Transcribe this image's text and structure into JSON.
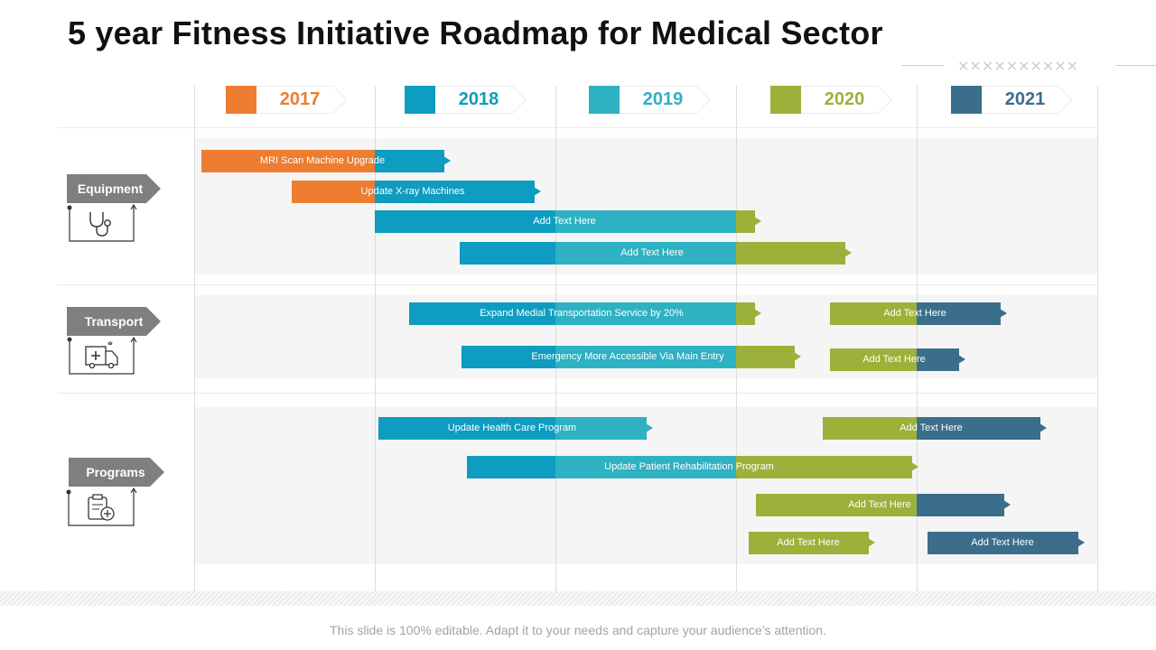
{
  "title": "5 year Fitness Initiative Roadmap for Medical Sector",
  "decoration": "××××××××××",
  "colors": {
    "2017": "#ED7D31",
    "2018": "#0E9CC0",
    "2019": "#2EB1C2",
    "2020": "#9CB13A",
    "2021": "#3B6E8A"
  },
  "years": [
    {
      "label": "2017",
      "color": "#ED7D31"
    },
    {
      "label": "2018",
      "color": "#0E9CC0"
    },
    {
      "label": "2019",
      "color": "#2EB1C2"
    },
    {
      "label": "2020",
      "color": "#9CB13A"
    },
    {
      "label": "2021",
      "color": "#3B6E8A"
    }
  ],
  "categories": [
    {
      "label": "Equipment",
      "icon": "stethoscope-icon"
    },
    {
      "label": "Transport",
      "icon": "ambulance-icon"
    },
    {
      "label": "Programs",
      "icon": "clipboard-plus-icon"
    }
  ],
  "chart_data": {
    "type": "gantt",
    "time_axis": {
      "start": 2017,
      "end": 2022,
      "ticks": [
        "2017",
        "2018",
        "2019",
        "2020",
        "2021"
      ]
    },
    "tasks": [
      {
        "category": "Equipment",
        "label": "MRI Scan Machine Upgrade",
        "start": 2017.04,
        "end": 2018.38
      },
      {
        "category": "Equipment",
        "label": "Update X-ray Machines",
        "start": 2017.54,
        "end": 2018.88
      },
      {
        "category": "Equipment",
        "label": "Add Text Here",
        "start": 2018.0,
        "end": 2020.1
      },
      {
        "category": "Equipment",
        "label": "Add Text Here",
        "start": 2018.47,
        "end": 2020.6
      },
      {
        "category": "Transport",
        "label": "Expand Medial Transportation Service by 20%",
        "start": 2018.19,
        "end": 2020.1
      },
      {
        "category": "Transport",
        "label": "Emergency More Accessible Via Main Entry",
        "start": 2018.48,
        "end": 2020.32
      },
      {
        "category": "Transport",
        "label": "Add Text Here",
        "start": 2020.52,
        "end": 2021.46
      },
      {
        "category": "Transport",
        "label": "Add Text Here",
        "start": 2020.52,
        "end": 2021.23
      },
      {
        "category": "Programs",
        "label": "Update Health Care Program",
        "start": 2018.02,
        "end": 2019.5
      },
      {
        "category": "Programs",
        "label": "Update Patient Rehabilitation Program",
        "start": 2018.51,
        "end": 2020.97
      },
      {
        "category": "Programs",
        "label": "Add Text Here",
        "start": 2020.11,
        "end": 2021.48
      },
      {
        "category": "Programs",
        "label": "Add Text Here",
        "start": 2020.48,
        "end": 2021.68
      },
      {
        "category": "Programs",
        "label": "Add Text Here",
        "start": 2020.07,
        "end": 2020.73
      },
      {
        "category": "Programs",
        "label": "Add Text Here",
        "start": 2021.06,
        "end": 2021.89
      }
    ]
  },
  "footer": "This slide is 100% editable. Adapt it to your needs and capture your audience’s attention."
}
